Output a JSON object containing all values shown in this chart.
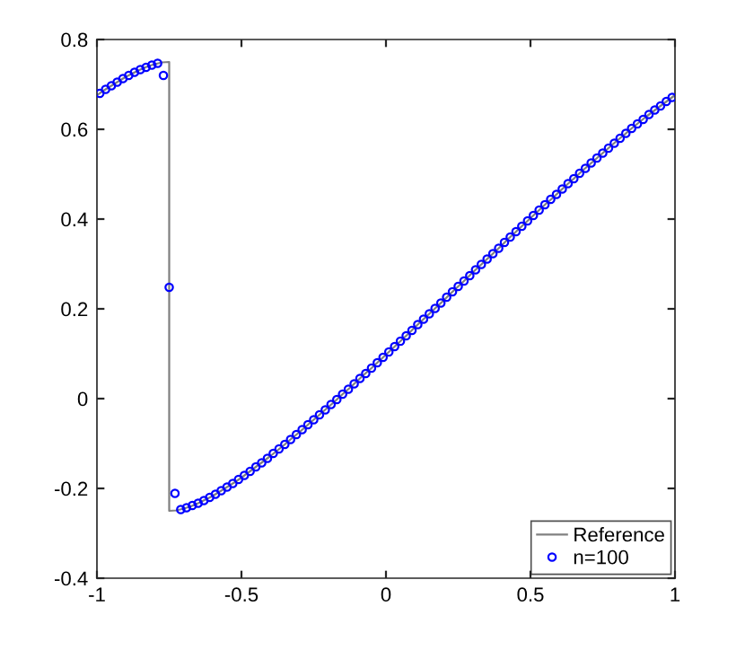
{
  "chart_data": {
    "type": "line",
    "xlim": [
      -1,
      1
    ],
    "ylim": [
      -0.4,
      0.8
    ],
    "xticks": [
      -1,
      -0.5,
      0,
      0.5,
      1
    ],
    "yticks": [
      -0.4,
      -0.2,
      0,
      0.2,
      0.4,
      0.6,
      0.8
    ],
    "grid": false,
    "legend": "bottom right",
    "series": [
      {
        "name": "Reference",
        "color": "#808080",
        "marker": "none",
        "line_style": "solid",
        "x": [
          -1,
          -0.975,
          -0.95,
          -0.925,
          -0.9,
          -0.875,
          -0.85,
          -0.825,
          -0.8,
          -0.775,
          -0.75,
          -0.75,
          -0.725,
          -0.7,
          -0.675,
          -0.65,
          -0.625,
          -0.6,
          -0.575,
          -0.55,
          -0.525,
          -0.5,
          -0.475,
          -0.45,
          -0.425,
          -0.4,
          -0.375,
          -0.35,
          -0.325,
          -0.3,
          -0.275,
          -0.25,
          -0.225,
          -0.2,
          -0.175,
          -0.15,
          -0.125,
          -0.1,
          -0.075,
          -0.05,
          -0.025,
          0,
          0.025,
          0.05,
          0.075,
          0.1,
          0.125,
          0.15,
          0.175,
          0.2,
          0.225,
          0.25,
          0.275,
          0.3,
          0.325,
          0.35,
          0.375,
          0.4,
          0.425,
          0.45,
          0.475,
          0.5,
          0.525,
          0.55,
          0.575,
          0.6,
          0.625,
          0.65,
          0.675,
          0.7,
          0.725,
          0.75,
          0.775,
          0.8,
          0.825,
          0.85,
          0.875,
          0.9,
          0.925,
          0.95,
          0.975,
          1
        ],
        "values": [
          0.676,
          0.687,
          0.697,
          0.707,
          0.717,
          0.725,
          0.733,
          0.74,
          0.745,
          0.749,
          0.75,
          -0.25,
          -0.249,
          -0.245,
          -0.24,
          -0.233,
          -0.225,
          -0.217,
          -0.207,
          -0.197,
          -0.187,
          -0.176,
          -0.164,
          -0.152,
          -0.14,
          -0.128,
          -0.115,
          -0.102,
          -0.088,
          -0.075,
          -0.061,
          -0.047,
          -0.033,
          -0.019,
          -0.005,
          0.01,
          0.024,
          0.039,
          0.054,
          0.068,
          0.083,
          0.098,
          0.113,
          0.128,
          0.143,
          0.159,
          0.174,
          0.189,
          0.204,
          0.219,
          0.235,
          0.25,
          0.265,
          0.281,
          0.296,
          0.311,
          0.326,
          0.341,
          0.357,
          0.372,
          0.387,
          0.402,
          0.417,
          0.432,
          0.446,
          0.461,
          0.476,
          0.49,
          0.505,
          0.519,
          0.533,
          0.547,
          0.561,
          0.575,
          0.588,
          0.602,
          0.615,
          0.628,
          0.64,
          0.652,
          0.664,
          0.676
        ]
      },
      {
        "name": "n=100",
        "type": "scatter",
        "color": "#0000ff",
        "marker": "circle",
        "x": [
          -0.99,
          -0.97,
          -0.95,
          -0.93,
          -0.91,
          -0.89,
          -0.87,
          -0.85,
          -0.83,
          -0.81,
          -0.79,
          -0.77,
          -0.75,
          -0.73,
          -0.71,
          -0.69,
          -0.67,
          -0.65,
          -0.63,
          -0.61,
          -0.59,
          -0.57,
          -0.55,
          -0.53,
          -0.51,
          -0.49,
          -0.47,
          -0.45,
          -0.43,
          -0.41,
          -0.39,
          -0.37,
          -0.35,
          -0.33,
          -0.31,
          -0.29,
          -0.27,
          -0.25,
          -0.23,
          -0.21,
          -0.19,
          -0.17,
          -0.15,
          -0.13,
          -0.11,
          -0.09,
          -0.07,
          -0.05,
          -0.03,
          -0.01,
          0.01,
          0.03,
          0.05,
          0.07,
          0.09,
          0.11,
          0.13,
          0.15,
          0.17,
          0.19,
          0.21,
          0.23,
          0.25,
          0.27,
          0.29,
          0.31,
          0.33,
          0.35,
          0.37,
          0.39,
          0.41,
          0.43,
          0.45,
          0.47,
          0.49,
          0.51,
          0.53,
          0.55,
          0.57,
          0.59,
          0.61,
          0.63,
          0.65,
          0.67,
          0.69,
          0.71,
          0.73,
          0.75,
          0.77,
          0.79,
          0.81,
          0.83,
          0.85,
          0.87,
          0.89,
          0.91,
          0.93,
          0.95,
          0.97,
          0.99
        ],
        "values": [
          0.68,
          0.689,
          0.697,
          0.705,
          0.713,
          0.72,
          0.727,
          0.733,
          0.738,
          0.743,
          0.747,
          0.72,
          0.248,
          -0.211,
          -0.247,
          -0.243,
          -0.238,
          -0.233,
          -0.227,
          -0.22,
          -0.213,
          -0.205,
          -0.197,
          -0.189,
          -0.18,
          -0.171,
          -0.162,
          -0.152,
          -0.143,
          -0.133,
          -0.122,
          -0.112,
          -0.102,
          -0.091,
          -0.08,
          -0.069,
          -0.058,
          -0.047,
          -0.036,
          -0.025,
          -0.013,
          -0.002,
          0.01,
          0.021,
          0.033,
          0.045,
          0.056,
          0.068,
          0.08,
          0.092,
          0.104,
          0.116,
          0.128,
          0.14,
          0.152,
          0.165,
          0.177,
          0.189,
          0.201,
          0.213,
          0.226,
          0.238,
          0.25,
          0.262,
          0.274,
          0.287,
          0.299,
          0.311,
          0.323,
          0.335,
          0.348,
          0.36,
          0.372,
          0.384,
          0.396,
          0.408,
          0.42,
          0.432,
          0.444,
          0.455,
          0.467,
          0.479,
          0.49,
          0.502,
          0.513,
          0.525,
          0.536,
          0.547,
          0.558,
          0.569,
          0.58,
          0.591,
          0.602,
          0.612,
          0.622,
          0.633,
          0.643,
          0.652,
          0.662,
          0.671
        ]
      }
    ]
  }
}
